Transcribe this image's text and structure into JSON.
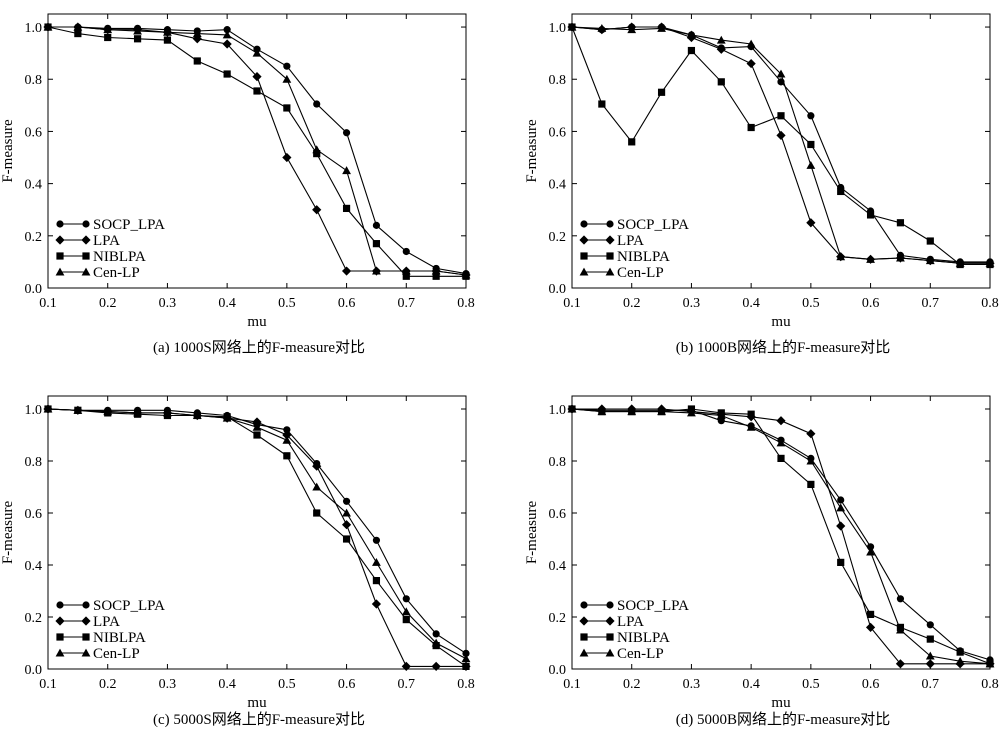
{
  "chart_data": [
    {
      "type": "line",
      "caption": "(a) 1000S网络上的F-measure对比",
      "xlabel": "mu",
      "ylabel": "F-measure",
      "xlim": [
        0.1,
        0.8
      ],
      "ylim": [
        0.0,
        1.05
      ],
      "xticks": [
        "0.1",
        "0.2",
        "0.3",
        "0.4",
        "0.5",
        "0.6",
        "0.7",
        "0.8"
      ],
      "yticks": [
        "0.0",
        "0.2",
        "0.4",
        "0.6",
        "0.8",
        "1.0"
      ],
      "legend_position": "bottom-left",
      "x": [
        0.1,
        0.15,
        0.2,
        0.25,
        0.3,
        0.35,
        0.4,
        0.45,
        0.5,
        0.55,
        0.6,
        0.65,
        0.7,
        0.75,
        0.8
      ],
      "series": [
        {
          "name": "SOCP_LPA",
          "marker": "circle",
          "values": [
            1.0,
            1.0,
            0.995,
            0.995,
            0.99,
            0.985,
            0.99,
            0.915,
            0.85,
            0.705,
            0.595,
            0.24,
            0.14,
            0.075,
            0.055
          ]
        },
        {
          "name": "LPA",
          "marker": "diamond",
          "values": [
            1.0,
            1.0,
            0.99,
            0.99,
            0.98,
            0.955,
            0.935,
            0.81,
            0.5,
            0.3,
            0.065,
            0.065,
            0.065,
            0.065,
            0.05
          ]
        },
        {
          "name": "NIBLPA",
          "marker": "square",
          "values": [
            1.0,
            0.975,
            0.96,
            0.955,
            0.95,
            0.87,
            0.82,
            0.755,
            0.69,
            0.515,
            0.305,
            0.17,
            0.045,
            0.045,
            0.045
          ]
        },
        {
          "name": "Cen-LP",
          "marker": "triangle",
          "values": [
            1.0,
            1.0,
            0.99,
            0.985,
            0.98,
            0.975,
            0.97,
            0.9,
            0.8,
            0.53,
            0.45,
            0.065,
            0.065,
            0.065,
            0.05
          ]
        }
      ]
    },
    {
      "type": "line",
      "caption": "(b) 1000B网络上的F-measure对比",
      "xlabel": "mu",
      "ylabel": "F-measure",
      "xlim": [
        0.1,
        0.8
      ],
      "ylim": [
        0.0,
        1.05
      ],
      "xticks": [
        "0.1",
        "0.2",
        "0.3",
        "0.4",
        "0.5",
        "0.6",
        "0.7",
        "0.8"
      ],
      "yticks": [
        "0.0",
        "0.2",
        "0.4",
        "0.6",
        "0.8",
        "1.0"
      ],
      "legend_position": "bottom-left",
      "x": [
        0.1,
        0.15,
        0.2,
        0.25,
        0.3,
        0.35,
        0.4,
        0.45,
        0.5,
        0.55,
        0.6,
        0.65,
        0.7,
        0.75,
        0.8
      ],
      "series": [
        {
          "name": "SOCP_LPA",
          "marker": "circle",
          "values": [
            1.0,
            0.99,
            1.0,
            1.0,
            0.97,
            0.92,
            0.925,
            0.79,
            0.66,
            0.385,
            0.295,
            0.125,
            0.11,
            0.1,
            0.1
          ]
        },
        {
          "name": "LPA",
          "marker": "diamond",
          "values": [
            1.0,
            0.99,
            1.0,
            1.0,
            0.96,
            0.915,
            0.86,
            0.585,
            0.25,
            0.12,
            0.11,
            0.115,
            0.105,
            0.095,
            0.095
          ]
        },
        {
          "name": "NIBLPA",
          "marker": "square",
          "values": [
            1.0,
            0.705,
            0.56,
            0.75,
            0.91,
            0.79,
            0.615,
            0.66,
            0.55,
            0.37,
            0.28,
            0.25,
            0.18,
            0.09,
            0.09
          ]
        },
        {
          "name": "Cen-LP",
          "marker": "triangle",
          "values": [
            1.0,
            0.995,
            0.99,
            0.995,
            0.97,
            0.95,
            0.935,
            0.82,
            0.47,
            0.12,
            0.11,
            0.115,
            0.105,
            0.095,
            0.095
          ]
        }
      ]
    },
    {
      "type": "line",
      "caption": "(c) 5000S网络上的F-measure对比",
      "xlabel": "mu",
      "ylabel": "F-measure",
      "xlim": [
        0.1,
        0.8
      ],
      "ylim": [
        0.0,
        1.05
      ],
      "xticks": [
        "0.1",
        "0.2",
        "0.3",
        "0.4",
        "0.5",
        "0.6",
        "0.7",
        "0.8"
      ],
      "yticks": [
        "0.0",
        "0.2",
        "0.4",
        "0.6",
        "0.8",
        "1.0"
      ],
      "legend_position": "bottom-left",
      "x": [
        0.1,
        0.15,
        0.2,
        0.25,
        0.3,
        0.35,
        0.4,
        0.45,
        0.5,
        0.55,
        0.6,
        0.65,
        0.7,
        0.75,
        0.8
      ],
      "series": [
        {
          "name": "SOCP_LPA",
          "marker": "circle",
          "values": [
            1.0,
            0.995,
            0.995,
            0.995,
            0.995,
            0.985,
            0.975,
            0.94,
            0.92,
            0.79,
            0.645,
            0.495,
            0.27,
            0.135,
            0.06
          ]
        },
        {
          "name": "LPA",
          "marker": "diamond",
          "values": [
            1.0,
            0.995,
            0.99,
            0.985,
            0.985,
            0.975,
            0.965,
            0.95,
            0.9,
            0.78,
            0.555,
            0.25,
            0.01,
            0.01,
            0.01
          ]
        },
        {
          "name": "NIBLPA",
          "marker": "square",
          "values": [
            1.0,
            0.995,
            0.985,
            0.98,
            0.975,
            0.975,
            0.97,
            0.9,
            0.82,
            0.6,
            0.5,
            0.34,
            0.19,
            0.09,
            0.01
          ]
        },
        {
          "name": "Cen-LP",
          "marker": "triangle",
          "values": [
            1.0,
            0.995,
            0.99,
            0.985,
            0.985,
            0.975,
            0.965,
            0.93,
            0.88,
            0.7,
            0.6,
            0.41,
            0.22,
            0.1,
            0.04
          ]
        }
      ]
    },
    {
      "type": "line",
      "caption": "(d) 5000B网络上的F-measure对比",
      "xlabel": "mu",
      "ylabel": "F-measure",
      "xlim": [
        0.1,
        0.8
      ],
      "ylim": [
        0.0,
        1.05
      ],
      "xticks": [
        "0.1",
        "0.2",
        "0.3",
        "0.4",
        "0.5",
        "0.6",
        "0.7",
        "0.8"
      ],
      "yticks": [
        "0.0",
        "0.2",
        "0.4",
        "0.6",
        "0.8",
        "1.0"
      ],
      "legend_position": "bottom-left",
      "x": [
        0.1,
        0.15,
        0.2,
        0.25,
        0.3,
        0.35,
        0.4,
        0.45,
        0.5,
        0.55,
        0.6,
        0.65,
        0.7,
        0.75,
        0.8
      ],
      "series": [
        {
          "name": "SOCP_LPA",
          "marker": "circle",
          "values": [
            1.0,
            0.995,
            0.995,
            0.995,
            0.995,
            0.955,
            0.935,
            0.88,
            0.81,
            0.65,
            0.47,
            0.27,
            0.17,
            0.07,
            0.035
          ]
        },
        {
          "name": "LPA",
          "marker": "diamond",
          "values": [
            1.0,
            1.0,
            1.0,
            1.0,
            0.99,
            0.98,
            0.97,
            0.955,
            0.905,
            0.55,
            0.16,
            0.02,
            0.02,
            0.02,
            0.02
          ]
        },
        {
          "name": "NIBLPA",
          "marker": "square",
          "values": [
            1.0,
            0.99,
            0.99,
            0.99,
            1.0,
            0.985,
            0.98,
            0.81,
            0.71,
            0.41,
            0.21,
            0.16,
            0.115,
            0.065,
            0.02
          ]
        },
        {
          "name": "Cen-LP",
          "marker": "triangle",
          "values": [
            1.0,
            0.99,
            0.99,
            0.99,
            0.985,
            0.975,
            0.93,
            0.87,
            0.8,
            0.62,
            0.45,
            0.15,
            0.05,
            0.03,
            0.02
          ]
        }
      ]
    }
  ]
}
